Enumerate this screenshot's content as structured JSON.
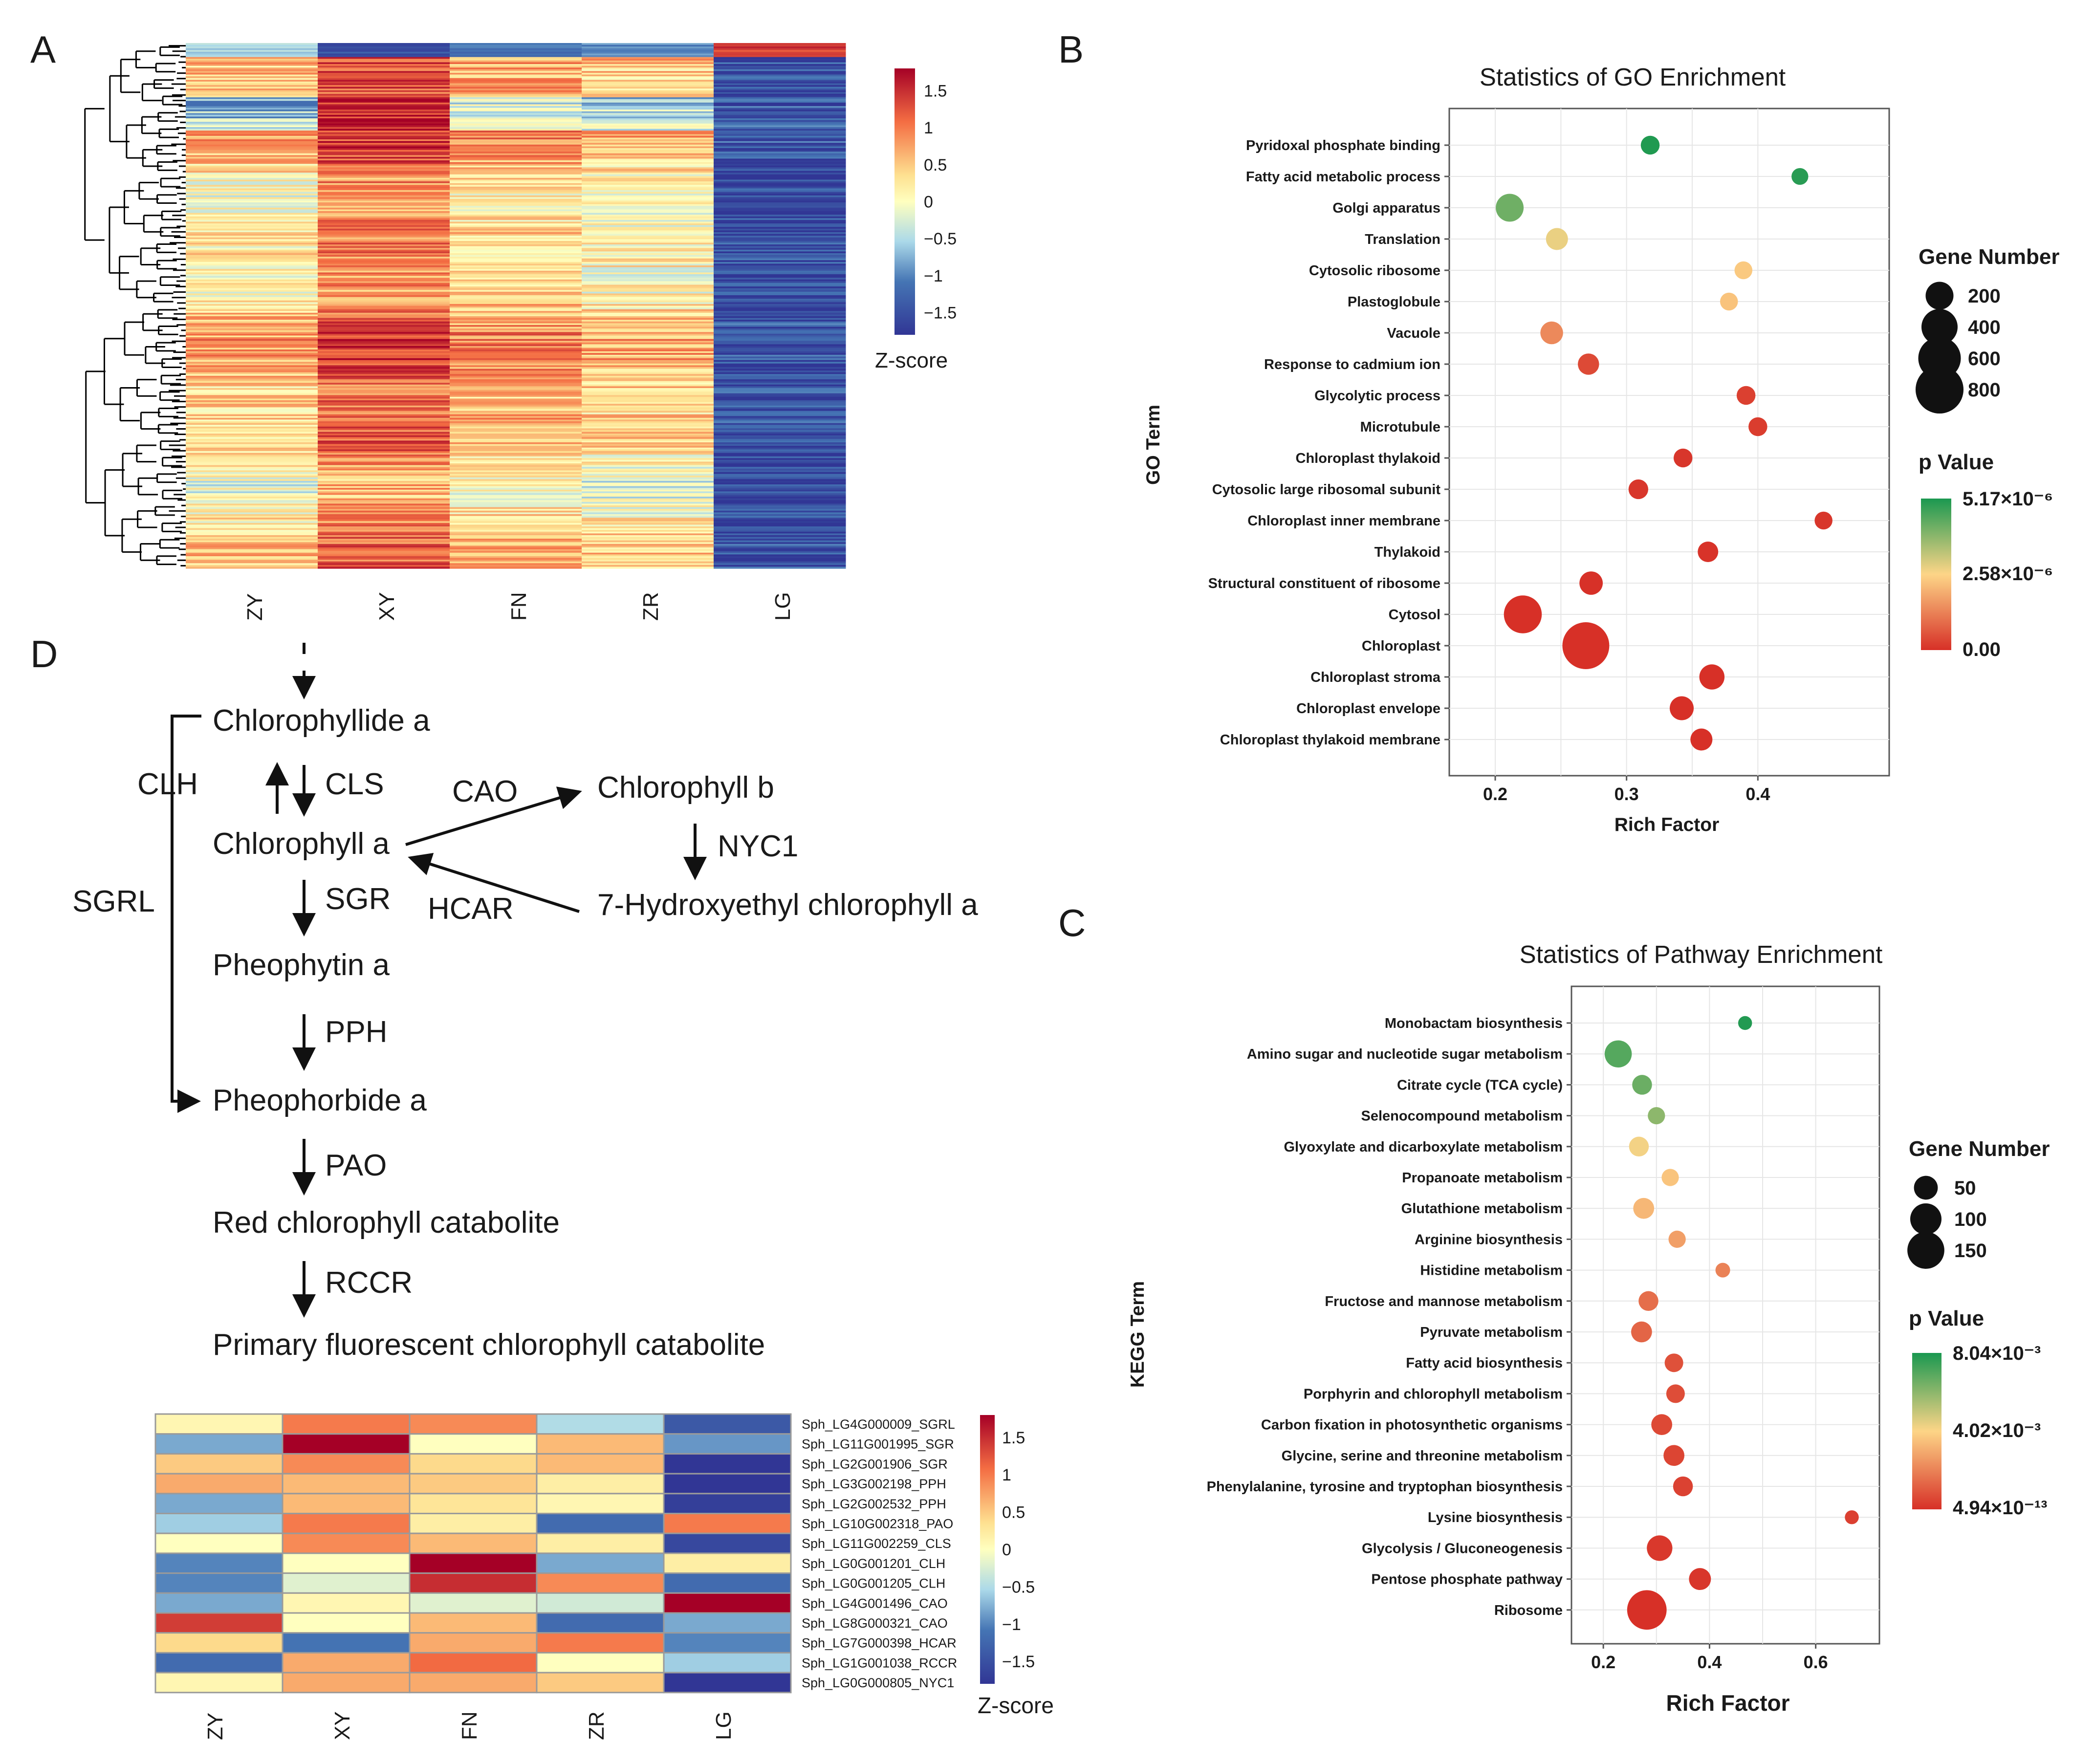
{
  "colors": {
    "low": "#3b4ba4",
    "mid": "#fefec0",
    "high": "#c5262e",
    "p_low": "#d73027",
    "p_mid": "#fdd587",
    "p_high": "#1a9850",
    "frame": "#555555",
    "grid": "#e6e6e6"
  },
  "panel_letters": {
    "a": "A",
    "b": "B",
    "c": "C",
    "d": "D"
  },
  "chart_data": [
    {
      "id": "A",
      "type": "heatmap",
      "columns": [
        "ZY",
        "XY",
        "FN",
        "ZR",
        "LG"
      ],
      "colorbar": {
        "title": "Z-score",
        "min": -1.8,
        "max": 1.8,
        "ticks": [
          1.5,
          1,
          0.5,
          0,
          -0.5,
          -1,
          -1.5
        ],
        "tick_labels": [
          "1.5",
          "1",
          "0.5",
          "0",
          "−0.5",
          "−1",
          "−1.5"
        ]
      },
      "row_profile_note": "rows are genes; approximate mean z-score per column",
      "column_means": [
        0.35,
        1.05,
        0.55,
        0.3,
        -1.5
      ]
    },
    {
      "id": "B",
      "type": "scatter",
      "title": "Statistics of GO Enrichment",
      "xlabel": "Rich Factor",
      "ylabel": "GO Term",
      "xlim": [
        0.165,
        0.5
      ],
      "xticks": [
        0.2,
        0.3,
        0.4
      ],
      "xtick_labels": [
        "0.2",
        "0.3",
        "0.4"
      ],
      "size_legend": {
        "title": "Gene Number",
        "values": [
          200,
          400,
          600,
          800
        ],
        "labels": [
          "200",
          "400",
          "600",
          "800"
        ]
      },
      "color_legend": {
        "title": "p Value",
        "min": 0,
        "max": 5.17e-06,
        "labels": [
          "5.17×10⁻⁶",
          "2.58×10⁻⁶",
          "0.00"
        ]
      },
      "points": [
        {
          "term": "Pyridoxal phosphate binding",
          "x": 0.318,
          "genes": 60,
          "p": 5.1e-06
        },
        {
          "term": "Fatty acid metabolic process",
          "x": 0.432,
          "genes": 40,
          "p": 5e-06
        },
        {
          "term": "Golgi apparatus",
          "x": 0.211,
          "genes": 200,
          "p": 4.2e-06
        },
        {
          "term": "Translation",
          "x": 0.247,
          "genes": 100,
          "p": 2.8e-06
        },
        {
          "term": "Cytosolic ribosome",
          "x": 0.389,
          "genes": 50,
          "p": 2.4e-06
        },
        {
          "term": "Plastoglobule",
          "x": 0.378,
          "genes": 50,
          "p": 2.3e-06
        },
        {
          "term": "Vacuole",
          "x": 0.243,
          "genes": 110,
          "p": 1.4e-06
        },
        {
          "term": "Response to cadmium ion",
          "x": 0.271,
          "genes": 90,
          "p": 4e-07
        },
        {
          "term": "Glycolytic process",
          "x": 0.391,
          "genes": 60,
          "p": 2.5e-07
        },
        {
          "term": "Microtubule",
          "x": 0.4,
          "genes": 60,
          "p": 2e-07
        },
        {
          "term": "Chloroplast thylakoid",
          "x": 0.343,
          "genes": 60,
          "p": 1e-07
        },
        {
          "term": "Cytosolic large ribosomal subunit",
          "x": 0.309,
          "genes": 70,
          "p": 1e-07
        },
        {
          "term": "Chloroplast inner membrane",
          "x": 0.45,
          "genes": 50,
          "p": 1e-07
        },
        {
          "term": "Thylakoid",
          "x": 0.362,
          "genes": 80,
          "p": 5e-08
        },
        {
          "term": "Structural constituent of ribosome",
          "x": 0.273,
          "genes": 120,
          "p": 2e-08
        },
        {
          "term": "Cytosol",
          "x": 0.221,
          "genes": 450,
          "p": 0.0
        },
        {
          "term": "Chloroplast",
          "x": 0.269,
          "genes": 760,
          "p": 0.0
        },
        {
          "term": "Chloroplast stroma",
          "x": 0.365,
          "genes": 150,
          "p": 0.0
        },
        {
          "term": "Chloroplast envelope",
          "x": 0.342,
          "genes": 130,
          "p": 0.0
        },
        {
          "term": "Chloroplast thylakoid membrane",
          "x": 0.357,
          "genes": 100,
          "p": 0.0
        }
      ]
    },
    {
      "id": "C",
      "type": "scatter",
      "title": "Statistics of Pathway Enrichment",
      "xlabel": "Rich Factor",
      "ylabel": "KEGG Term",
      "xlim": [
        0.14,
        0.72
      ],
      "xticks": [
        0.2,
        0.4,
        0.6
      ],
      "xtick_labels": [
        "0.2",
        "0.4",
        "0.6"
      ],
      "size_legend": {
        "title": "Gene Number",
        "values": [
          50,
          100,
          150
        ],
        "labels": [
          "50",
          "100",
          "150"
        ]
      },
      "color_legend": {
        "title": "p Value",
        "min": 0,
        "max": 0.00804,
        "labels": [
          "8.04×10⁻³",
          "4.02×10⁻³",
          "4.94×10⁻¹³"
        ]
      },
      "points": [
        {
          "term": "Monobactam biosynthesis",
          "x": 0.467,
          "genes": 10,
          "p": 0.0079
        },
        {
          "term": "Amino sugar and nucleotide sugar metabolism",
          "x": 0.228,
          "genes": 70,
          "p": 0.007
        },
        {
          "term": "Citrate cycle (TCA cycle)",
          "x": 0.273,
          "genes": 30,
          "p": 0.0066
        },
        {
          "term": "Selenocompound metabolism",
          "x": 0.3,
          "genes": 20,
          "p": 0.006
        },
        {
          "term": "Glyoxylate and dicarboxylate metabolism",
          "x": 0.267,
          "genes": 30,
          "p": 0.0042
        },
        {
          "term": "Propanoate metabolism",
          "x": 0.326,
          "genes": 20,
          "p": 0.0036
        },
        {
          "term": "Glutathione metabolism",
          "x": 0.276,
          "genes": 35,
          "p": 0.0033
        },
        {
          "term": "Arginine biosynthesis",
          "x": 0.339,
          "genes": 20,
          "p": 0.0027
        },
        {
          "term": "Histidine metabolism",
          "x": 0.425,
          "genes": 12,
          "p": 0.002
        },
        {
          "term": "Fructose and mannose metabolism",
          "x": 0.285,
          "genes": 30,
          "p": 0.0015
        },
        {
          "term": "Pyruvate metabolism",
          "x": 0.272,
          "genes": 35,
          "p": 0.0013
        },
        {
          "term": "Fatty acid biosynthesis",
          "x": 0.333,
          "genes": 25,
          "p": 0.0008
        },
        {
          "term": "Porphyrin and chlorophyll metabolism",
          "x": 0.336,
          "genes": 25,
          "p": 0.0007
        },
        {
          "term": "Carbon fixation in photosynthetic organisms",
          "x": 0.31,
          "genes": 35,
          "p": 0.0006
        },
        {
          "term": "Glycine, serine and threonine metabolism",
          "x": 0.333,
          "genes": 35,
          "p": 0.0005
        },
        {
          "term": "Phenylalanine, tyrosine and tryptophan biosynthesis",
          "x": 0.35,
          "genes": 30,
          "p": 0.00045
        },
        {
          "term": "Lysine biosynthesis",
          "x": 0.668,
          "genes": 10,
          "p": 0.0004
        },
        {
          "term": "Glycolysis / Gluconeogenesis",
          "x": 0.306,
          "genes": 60,
          "p": 0.0002
        },
        {
          "term": "Pentose phosphate pathway",
          "x": 0.382,
          "genes": 40,
          "p": 0.00015
        },
        {
          "term": "Ribosome",
          "x": 0.282,
          "genes": 175,
          "p": 0.0
        }
      ]
    },
    {
      "id": "D-heatmap",
      "type": "heatmap",
      "columns": [
        "ZY",
        "XY",
        "FN",
        "ZR",
        "LG"
      ],
      "colorbar": {
        "title": "Z-score",
        "min": -1.8,
        "max": 1.8,
        "ticks": [
          1.5,
          1,
          0.5,
          0,
          -0.5,
          -1,
          -1.5
        ],
        "tick_labels": [
          "1.5",
          "1",
          "0.5",
          "0",
          "−0.5",
          "−1",
          "−1.5"
        ]
      },
      "rows": [
        {
          "gene": "Sph_LG4G000009_SGRL",
          "values": [
            0.1,
            1.0,
            0.9,
            -0.5,
            -1.4
          ]
        },
        {
          "gene": "Sph_LG11G001995_SGR",
          "values": [
            -0.8,
            1.8,
            0.0,
            0.6,
            -0.9
          ]
        },
        {
          "gene": "Sph_LG2G001906_SGR",
          "values": [
            0.5,
            0.9,
            0.4,
            0.6,
            -1.9
          ]
        },
        {
          "gene": "Sph_LG3G002198_PPH",
          "values": [
            0.7,
            0.6,
            0.5,
            0.2,
            -1.8
          ]
        },
        {
          "gene": "Sph_LG2G002532_PPH",
          "values": [
            -0.8,
            0.6,
            0.3,
            0.1,
            -1.7
          ]
        },
        {
          "gene": "Sph_LG10G002318_PAO",
          "values": [
            -0.6,
            1.0,
            0.2,
            -1.2,
            1.0
          ]
        },
        {
          "gene": "Sph_LG11G002259_CLS",
          "values": [
            0.0,
            0.9,
            0.6,
            0.2,
            -1.6
          ]
        },
        {
          "gene": "Sph_LG0G001201_CLH",
          "values": [
            -1.0,
            0.0,
            1.8,
            -0.8,
            0.2
          ]
        },
        {
          "gene": "Sph_LG0G001205_CLH",
          "values": [
            -1.0,
            -0.2,
            1.5,
            0.9,
            -1.2
          ]
        },
        {
          "gene": "Sph_LG4G001496_CAO",
          "values": [
            -0.8,
            0.1,
            -0.2,
            -0.3,
            1.8
          ]
        },
        {
          "gene": "Sph_LG8G000321_CAO",
          "values": [
            1.4,
            0.0,
            0.6,
            -1.2,
            -0.8
          ]
        },
        {
          "gene": "Sph_LG7G000398_HCAR",
          "values": [
            0.4,
            -1.1,
            0.7,
            1.0,
            -1.0
          ]
        },
        {
          "gene": "Sph_LG1G001038_RCCR",
          "values": [
            -1.2,
            0.7,
            1.1,
            0.0,
            -0.6
          ]
        },
        {
          "gene": "Sph_LG0G000805_NYC1",
          "values": [
            0.1,
            0.7,
            0.7,
            0.5,
            -1.9
          ]
        }
      ]
    }
  ],
  "pathway": {
    "nodes": {
      "chlorophyllide_a": "Chlorophyllide a",
      "chlorophyll_a": "Chlorophyll a",
      "chlorophyll_b": "Chlorophyll b",
      "hydroxyethyl": "7-Hydroxyethyl chlorophyll a",
      "pheophytin_a": "Pheophytin a",
      "pheophorbide_a": "Pheophorbide a",
      "rcc": "Red chlorophyll catabolite",
      "pfcc": "Primary fluorescent chlorophyll catabolite"
    },
    "enzymes": {
      "clh": "CLH",
      "cls": "CLS",
      "cao": "CAO",
      "nyc1": "NYC1",
      "hcar": "HCAR",
      "sgr": "SGR",
      "sgrl": "SGRL",
      "pph": "PPH",
      "pao": "PAO",
      "rccr": "RCCR"
    }
  }
}
